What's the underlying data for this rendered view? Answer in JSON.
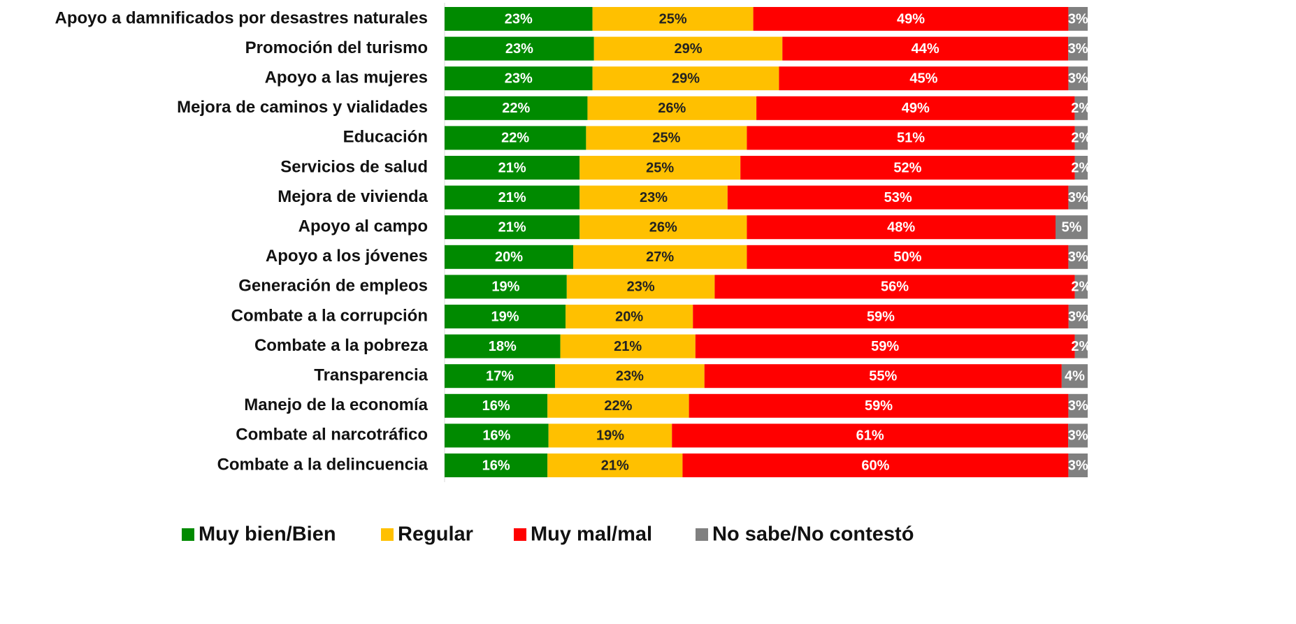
{
  "chart_data": {
    "type": "bar",
    "orientation": "horizontal",
    "stacked": "percent",
    "legend": "bottom",
    "categories": [
      "Apoyo a damnificados por desastres naturales",
      "Promoción del turismo",
      "Apoyo a las mujeres",
      "Mejora de caminos y vialidades",
      "Educación",
      "Servicios de salud",
      "Mejora de vivienda",
      "Apoyo al campo",
      "Apoyo a los jóvenes",
      "Generación de empleos",
      "Combate a la corrupción",
      "Combate a la pobreza",
      "Transparencia",
      "Manejo de la economía",
      "Combate al narcotráfico",
      "Combate a la delincuencia"
    ],
    "series": [
      {
        "name": "Muy bien/Bien",
        "color": "#008a00",
        "label_color": "#ffffff",
        "values": [
          23,
          23,
          23,
          22,
          22,
          21,
          21,
          21,
          20,
          19,
          19,
          18,
          17,
          16,
          16,
          16
        ],
        "value_labels": [
          "23%",
          "23%",
          "23%",
          "22%",
          "22%",
          "21%",
          "21%",
          "21%",
          "20%",
          "19%",
          "19%",
          "18%",
          "17%",
          "16%",
          "16%",
          "16%"
        ]
      },
      {
        "name": "Regular",
        "color": "#ffc000",
        "label_color": "#222222",
        "values": [
          25,
          29,
          29,
          26,
          25,
          25,
          23,
          26,
          27,
          23,
          20,
          21,
          23,
          22,
          19,
          21
        ],
        "value_labels": [
          "25%",
          "29%",
          "29%",
          "26%",
          "25%",
          "25%",
          "23%",
          "26%",
          "27%",
          "23%",
          "20%",
          "21%",
          "23%",
          "22%",
          "19%",
          "21%"
        ]
      },
      {
        "name": "Muy mal/mal",
        "color": "#ff0000",
        "label_color": "#ffffff",
        "values": [
          49,
          44,
          45,
          49,
          51,
          52,
          53,
          48,
          50,
          56,
          59,
          59,
          55,
          59,
          61,
          60
        ],
        "value_labels": [
          "49%",
          "44%",
          "45%",
          "49%",
          "51%",
          "52%",
          "53%",
          "48%",
          "50%",
          "56%",
          "59%",
          "59%",
          "55%",
          "59%",
          "61%",
          "60%"
        ]
      },
      {
        "name": "No sabe/No contestó",
        "color": "#808080",
        "label_color": "#ffffff",
        "values": [
          3,
          3,
          3,
          2,
          2,
          2,
          3,
          5,
          3,
          2,
          3,
          2,
          4,
          3,
          3,
          3
        ],
        "value_labels": [
          "3%",
          "3%",
          "3%",
          "2%",
          "2%",
          "2%",
          "3%",
          "5%",
          "3%",
          "2%",
          "3%",
          "2%",
          "4%",
          "3%",
          "3%",
          "3%"
        ]
      }
    ]
  }
}
